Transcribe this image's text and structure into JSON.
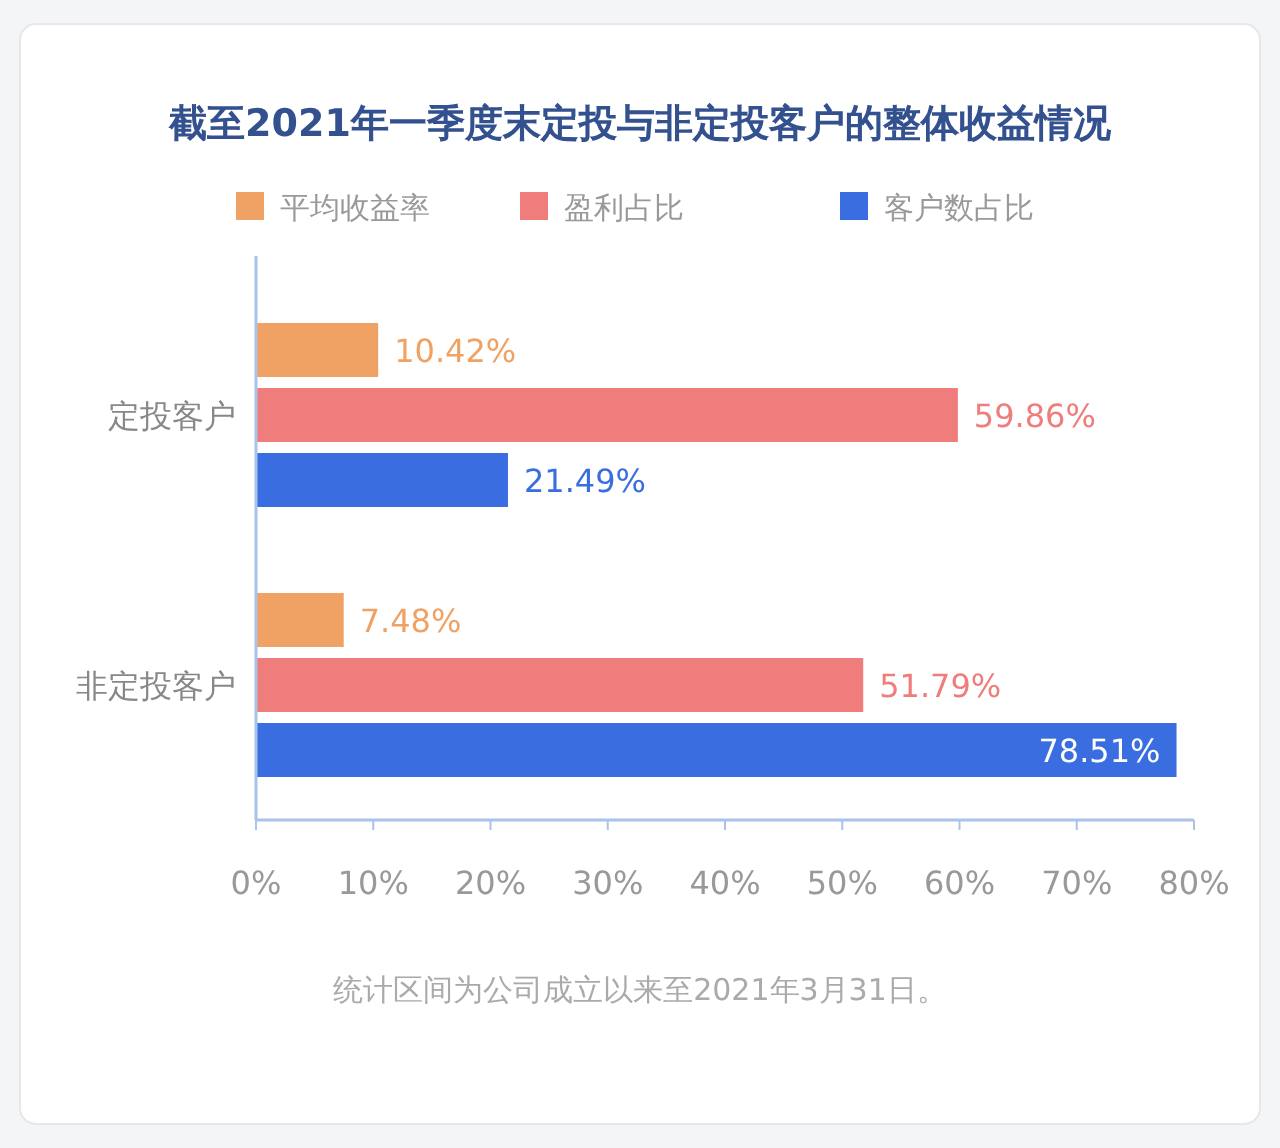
{
  "chart_data": {
    "type": "bar",
    "orientation": "horizontal",
    "title": "截至2021年一季度末定投与非定投客户的整体收益情况",
    "categories": [
      "定投客户",
      "非定投客户"
    ],
    "series": [
      {
        "name": "平均收益率",
        "color": "#f0a264",
        "values": [
          10.42,
          7.48
        ],
        "value_labels": [
          "10.42%",
          "7.48%"
        ]
      },
      {
        "name": "盈利占比",
        "color": "#ee7d7b",
        "values": [
          59.86,
          51.79
        ],
        "value_labels": [
          "59.86%",
          "51.79%"
        ]
      },
      {
        "name": "客户数占比",
        "color": "#3a6ee0",
        "values": [
          21.49,
          78.51
        ],
        "value_labels": [
          "21.49%",
          "78.51%"
        ]
      }
    ],
    "xlim": [
      0,
      80
    ],
    "xticks": [
      {
        "value": 0,
        "label": "0%"
      },
      {
        "value": 10,
        "label": "10%"
      },
      {
        "value": 20,
        "label": "20%"
      },
      {
        "value": 30,
        "label": "30%"
      },
      {
        "value": 40,
        "label": "40%"
      },
      {
        "value": 50,
        "label": "50%"
      },
      {
        "value": 60,
        "label": "60%"
      },
      {
        "value": 70,
        "label": "70%"
      },
      {
        "value": 80,
        "label": "80%"
      }
    ],
    "legend": "top",
    "annotations": [
      "统计区间为公司成立以来至2021年3月31日。"
    ]
  }
}
